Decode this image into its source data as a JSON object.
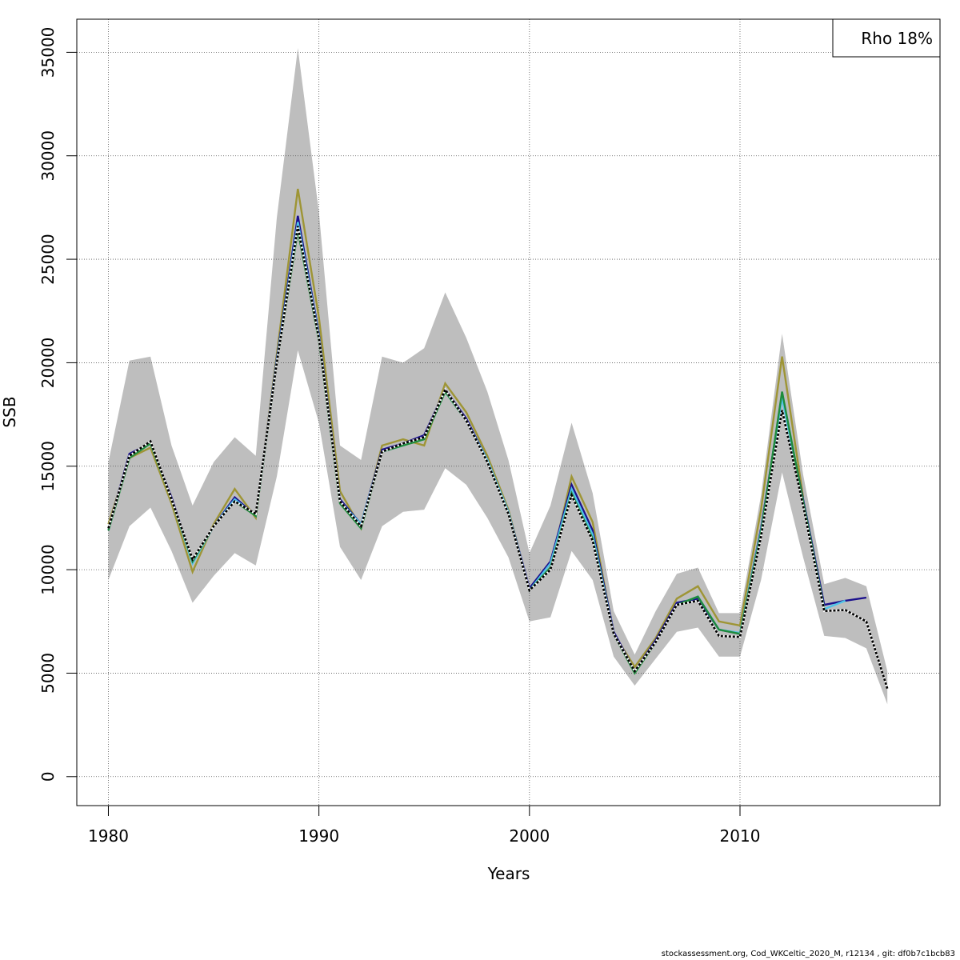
{
  "chart_data": {
    "type": "line",
    "xlabel": "Years",
    "ylabel": "SSB",
    "xlim": [
      1978.5,
      2019.5
    ],
    "ylim": [
      -1400,
      36600
    ],
    "x_ticks": [
      1980,
      1990,
      2000,
      2010
    ],
    "y_ticks": [
      0,
      5000,
      10000,
      15000,
      20000,
      25000,
      30000,
      35000
    ],
    "grid": true,
    "legend": {
      "position": "top-right",
      "text": "Rho 18%"
    },
    "confidence_band": {
      "color": "#bebebe",
      "x": [
        1980,
        1981,
        1982,
        1983,
        1984,
        1985,
        1986,
        1987,
        1988,
        1989,
        1990,
        1991,
        1992,
        1993,
        1994,
        1995,
        1996,
        1997,
        1998,
        1999,
        2000,
        2001,
        2002,
        2003,
        2004,
        2005,
        2006,
        2007,
        2008,
        2009,
        2010,
        2011,
        2012,
        2013,
        2014,
        2015,
        2016,
        2017
      ],
      "upper": [
        15200,
        20100,
        20300,
        16000,
        13100,
        15200,
        16400,
        15500,
        27000,
        35200,
        27300,
        16000,
        15300,
        20300,
        20000,
        20700,
        23400,
        21200,
        18600,
        15300,
        10800,
        13100,
        17100,
        13700,
        8000,
        5900,
        8000,
        9800,
        10100,
        7900,
        7900,
        13600,
        21400,
        14600,
        9300,
        9600,
        9200,
        5100
      ],
      "lower": [
        9500,
        12100,
        13000,
        10900,
        8400,
        9700,
        10800,
        10200,
        14500,
        20600,
        17100,
        11100,
        9500,
        12100,
        12800,
        12900,
        14900,
        14100,
        12500,
        10600,
        7500,
        7700,
        10900,
        9500,
        5800,
        4400,
        5700,
        7000,
        7200,
        5800,
        5800,
        9500,
        14700,
        10600,
        6800,
        6700,
        6200,
        3500
      ]
    },
    "series": [
      {
        "color": "#000000",
        "dashed": true,
        "x": [
          1980,
          1981,
          1982,
          1983,
          1984,
          1985,
          1986,
          1987,
          1988,
          1989,
          1990,
          1991,
          1992,
          1993,
          1994,
          1995,
          1996,
          1997,
          1998,
          1999,
          2000,
          2001,
          2002,
          2003,
          2004,
          2005,
          2006,
          2007,
          2008,
          2009,
          2010,
          2011,
          2012,
          2013,
          2014,
          2015,
          2016,
          2017
        ],
        "values": [
          12000,
          15500,
          16200,
          13400,
          10500,
          12100,
          13300,
          12700,
          20000,
          26600,
          21200,
          13300,
          12100,
          15700,
          16100,
          16400,
          18700,
          17200,
          15200,
          12700,
          9000,
          10000,
          13600,
          11400,
          6900,
          5100,
          6500,
          8300,
          8500,
          6800,
          6750,
          11600,
          17700,
          13100,
          8000,
          8050,
          7500,
          4250
        ]
      },
      {
        "color": "#1a0f8c",
        "x": [
          1980,
          1981,
          1982,
          1983,
          1984,
          1985,
          1986,
          1987,
          1988,
          1989,
          1990,
          1991,
          1992,
          1993,
          1994,
          1995,
          1996,
          1997,
          1998,
          1999,
          2000,
          2001,
          2002,
          2003,
          2004,
          2005,
          2006,
          2007,
          2008,
          2009,
          2010,
          2011,
          2012,
          2013,
          2014,
          2015,
          2016
        ],
        "values": [
          12000,
          15600,
          16100,
          13500,
          10400,
          12100,
          13500,
          12600,
          20200,
          27100,
          21400,
          13400,
          12200,
          15800,
          16100,
          16500,
          18700,
          17300,
          15300,
          12800,
          9100,
          10400,
          14100,
          11900,
          7000,
          5100,
          6600,
          8400,
          8600,
          7100,
          6900,
          12000,
          18400,
          13400,
          8300,
          8500,
          8650
        ]
      },
      {
        "color": "#4fc3e8",
        "x": [
          1980,
          1981,
          1982,
          1983,
          1984,
          1985,
          1986,
          1987,
          1988,
          1989,
          1990,
          1991,
          1992,
          1993,
          1994,
          1995,
          1996,
          1997,
          1998,
          1999,
          2000,
          2001,
          2002,
          2003,
          2004,
          2005,
          2006,
          2007,
          2008,
          2009,
          2010,
          2011,
          2012,
          2013,
          2014,
          2015
        ],
        "values": [
          11900,
          15500,
          16100,
          13400,
          10300,
          12100,
          13400,
          12600,
          20100,
          26800,
          21300,
          13300,
          12200,
          15700,
          16000,
          16400,
          18600,
          17200,
          15300,
          12800,
          9000,
          10300,
          13900,
          11700,
          6900,
          5100,
          6500,
          8300,
          8700,
          7100,
          6950,
          11900,
          18300,
          13300,
          8100,
          8500
        ]
      },
      {
        "color": "#1e8c3c",
        "x": [
          1980,
          1981,
          1982,
          1983,
          1984,
          1985,
          1986,
          1987,
          1988,
          1989,
          1990,
          1991,
          1992,
          1993,
          1994,
          1995,
          1996,
          1997,
          1998,
          1999,
          2000,
          2001,
          2002,
          2003,
          2004,
          2005,
          2006,
          2007,
          2008,
          2009,
          2010,
          2011,
          2012,
          2013,
          2014
        ],
        "values": [
          11900,
          15400,
          16100,
          13400,
          10400,
          12100,
          13300,
          12600,
          20000,
          26400,
          21100,
          13200,
          12000,
          15700,
          16000,
          16300,
          18600,
          17200,
          15200,
          12700,
          9000,
          10100,
          13700,
          11500,
          6900,
          5000,
          6500,
          8300,
          8700,
          7100,
          6900,
          11800,
          18600,
          13300,
          8100
        ]
      },
      {
        "color": "#9e9535",
        "x": [
          1980,
          1981,
          1982,
          1983,
          1984,
          1985,
          1986,
          1987,
          1988,
          1989,
          1990,
          1991,
          1992,
          1993,
          1994,
          1995,
          1996,
          1997,
          1998,
          1999,
          2000,
          2001,
          2002,
          2003,
          2004,
          2005,
          2006,
          2007,
          2008,
          2009,
          2010,
          2011,
          2012,
          2013
        ],
        "values": [
          12200,
          15400,
          15900,
          13200,
          9900,
          12200,
          13900,
          12500,
          20400,
          28400,
          22200,
          13800,
          12000,
          16000,
          16300,
          16000,
          19000,
          17600,
          15500,
          12900,
          9000,
          10100,
          14500,
          12300,
          6900,
          5300,
          6700,
          8600,
          9200,
          7500,
          7300,
          12900,
          20300,
          13500
        ]
      }
    ]
  },
  "footer_text": "stockassessment.org, Cod_WKCeltic_2020_M, r12134 , git: df0b7c1bcb83"
}
